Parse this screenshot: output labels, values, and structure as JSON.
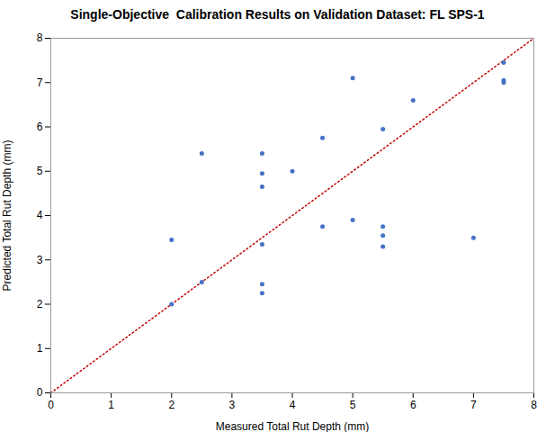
{
  "chart_data": {
    "type": "scatter",
    "title": "Single-Objective  Calibration Results on Validation Dataset: FL SPS-1",
    "xlabel": "Measured Total Rut Depth (mm)",
    "ylabel": "Predicted Total Rut Depth (mm)",
    "x": [
      2.0,
      2.5,
      2.0,
      2.5,
      3.5,
      3.5,
      3.5,
      3.5,
      3.5,
      3.5,
      4.0,
      4.5,
      4.5,
      5.0,
      5.0,
      5.5,
      5.5,
      5.5,
      5.5,
      6.0,
      7.0,
      7.5,
      7.5,
      7.5
    ],
    "y": [
      3.45,
      2.5,
      2.0,
      5.4,
      5.4,
      4.95,
      4.65,
      3.35,
      2.45,
      2.25,
      5.0,
      5.75,
      3.75,
      7.1,
      3.9,
      5.95,
      3.75,
      3.55,
      3.3,
      6.6,
      3.5,
      7.45,
      7.05,
      7.0
    ],
    "color": "#4472C4",
    "marker": "circle",
    "lines": [
      {
        "type": "line",
        "x": [
          0,
          8
        ],
        "y": [
          0,
          8
        ],
        "color": "#C00000",
        "line_style": "dotted"
      }
    ],
    "xlim": [
      0,
      8
    ],
    "ylim": [
      0,
      8
    ],
    "xticks": [
      0,
      1,
      2,
      3,
      4,
      5,
      6,
      7,
      8
    ],
    "yticks": [
      0,
      1,
      2,
      3,
      4,
      5,
      6,
      7,
      8
    ],
    "grid": false
  }
}
